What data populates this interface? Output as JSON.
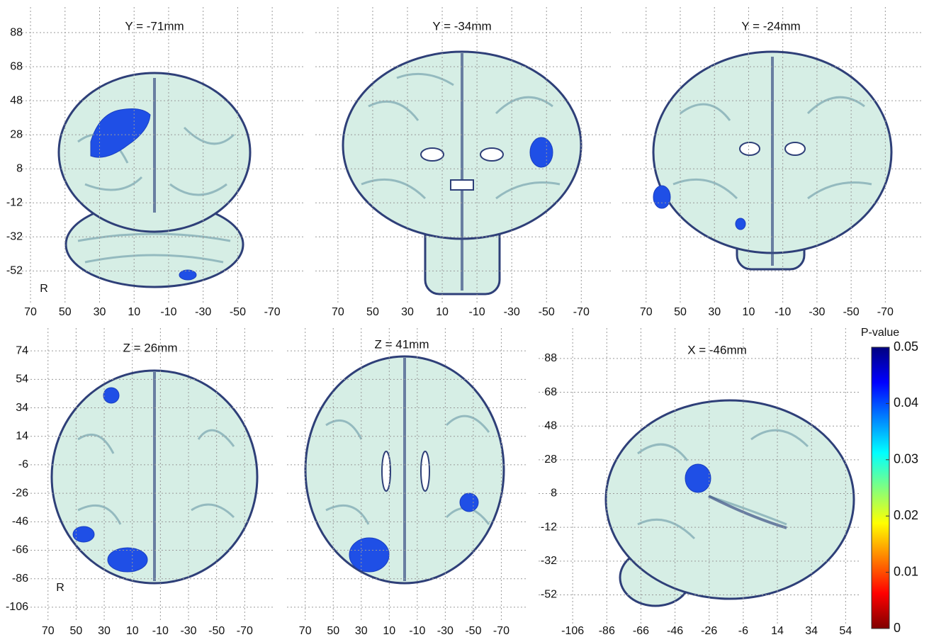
{
  "chart_data": [
    {
      "type": "slice",
      "title": "Y = -71mm",
      "xlim": [
        77,
        -88
      ],
      "ylim": [
        -71,
        103
      ],
      "xticks": [
        70,
        50,
        30,
        10,
        -10,
        -30,
        -50,
        -70
      ],
      "yticks": [
        88,
        68,
        48,
        28,
        8,
        -12,
        -32,
        -52
      ],
      "annotation": "R",
      "grid": true
    },
    {
      "type": "slice",
      "title": "Y = -34mm",
      "xlim": [
        83,
        -87
      ],
      "ylim": [
        -71,
        103
      ],
      "xticks": [
        70,
        50,
        30,
        10,
        -10,
        -30,
        -50,
        -70
      ],
      "grid": true
    },
    {
      "type": "slice",
      "title": "Y = -24mm",
      "xlim": [
        84,
        -91
      ],
      "ylim": [
        -71,
        103
      ],
      "xticks": [
        70,
        50,
        30,
        10,
        -10,
        -30,
        -50,
        -70
      ],
      "grid": true
    },
    {
      "type": "slice",
      "title": "Z = 26mm",
      "xlim": [
        85,
        -90
      ],
      "ylim": [
        -115,
        90
      ],
      "xticks": [
        70,
        50,
        30,
        10,
        -10,
        -30,
        -50,
        -70
      ],
      "yticks": [
        74,
        54,
        34,
        14,
        -6,
        -26,
        -46,
        -66,
        -86,
        -106
      ],
      "annotation": "R",
      "grid": true
    },
    {
      "type": "slice",
      "title": "Z = 41mm",
      "xlim": [
        83,
        -89
      ],
      "ylim": [
        -115,
        90
      ],
      "xticks": [
        70,
        50,
        30,
        10,
        -10,
        -30,
        -50,
        -70
      ],
      "grid": true
    },
    {
      "type": "slice",
      "title": "X = -46mm",
      "xlim": [
        -126,
        63
      ],
      "ylim": [
        -69,
        106
      ],
      "xticks": [
        -106,
        -86,
        -66,
        -46,
        -26,
        -6,
        14,
        34,
        54
      ],
      "yticks": [
        88,
        68,
        48,
        28,
        8,
        -12,
        -32,
        -52
      ],
      "grid": true
    },
    {
      "type": "colorbar",
      "title": "P-value",
      "ylim": [
        0,
        0.05
      ],
      "yticks": [
        0,
        0.01,
        0.02,
        0.03,
        0.04,
        0.05
      ],
      "colors": [
        "#7f0000",
        "#ff0000",
        "#ff8000",
        "#ffff00",
        "#80ff80",
        "#00ffff",
        "#0080ff",
        "#0000ff",
        "#00007f"
      ]
    }
  ]
}
